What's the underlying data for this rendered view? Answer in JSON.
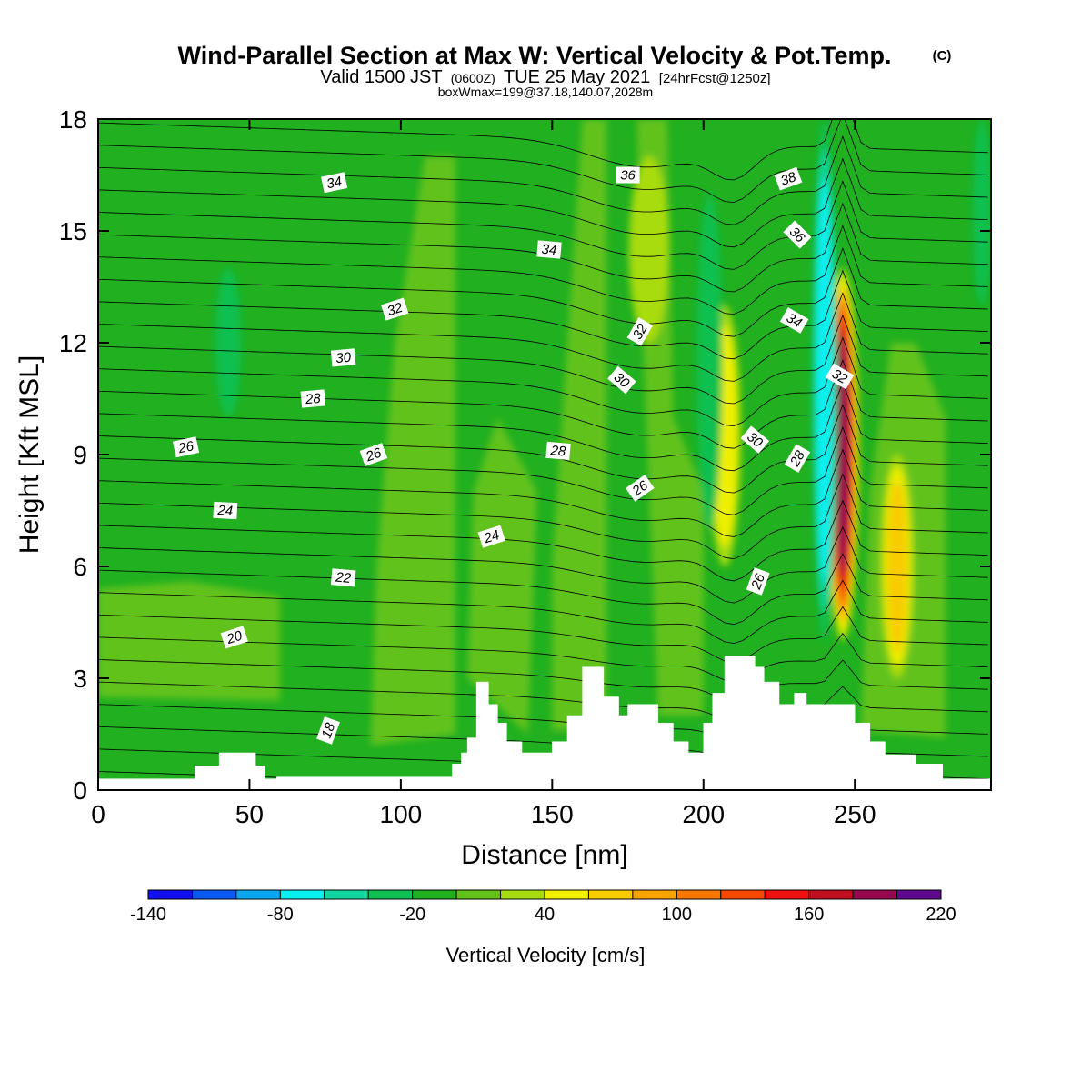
{
  "title": {
    "main": "Wind-Parallel Section at Max W: Vertical Velocity & Pot.Temp.",
    "copyright": "(C)",
    "valid_a": "Valid 1500 JST",
    "valid_utc": "(0600Z)",
    "valid_b": "TUE 25 May 2021",
    "forecast": "[24hrFcst@1250z]",
    "boxinfo": "boxWmax=199@37.18,140.07,2028m"
  },
  "chart_data": {
    "type": "heatmap",
    "xlabel": "Distance [nm]",
    "ylabel": "Height [Kft MSL]",
    "xlim": [
      0,
      295
    ],
    "ylim": [
      0,
      18
    ],
    "x_ticks": [
      0,
      50,
      100,
      150,
      200,
      250
    ],
    "y_ticks": [
      0,
      3,
      6,
      9,
      12,
      15,
      18
    ],
    "x_tick_labels": [
      "0",
      "50",
      "100",
      "150",
      "200",
      "250"
    ],
    "y_tick_labels": [
      "0",
      "3",
      "6",
      "9",
      "12",
      "15",
      "18"
    ],
    "colorbar": {
      "label": "Vertical Velocity [cm/s]",
      "levels": [
        -140,
        -120,
        -100,
        -80,
        -60,
        -40,
        -20,
        0,
        20,
        40,
        60,
        80,
        100,
        120,
        140,
        160,
        180,
        200,
        220
      ],
      "tick_values": [
        -140,
        -80,
        -20,
        40,
        100,
        160,
        220
      ],
      "tick_labels": [
        "-140",
        "-80",
        "-20",
        "40",
        "100",
        "160",
        "220"
      ],
      "colors": [
        "#1010f0",
        "#0a5af2",
        "#0aa6f0",
        "#08f0f0",
        "#10d8a0",
        "#10c050",
        "#20b020",
        "#62c21a",
        "#a8dc10",
        "#f0f000",
        "#f8cc00",
        "#f8a400",
        "#f87800",
        "#f84800",
        "#f01010",
        "#c01020",
        "#980a50",
        "#600890"
      ]
    },
    "background_velocity_band": "-20 to 0",
    "features": [
      {
        "kind": "updraft",
        "x_center": 246,
        "height_range": [
          4,
          14
        ],
        "max_velocity": 199,
        "label": "boxWmax=199"
      },
      {
        "kind": "updraft",
        "x_center": 207,
        "height_range": [
          6,
          13
        ],
        "max_velocity": 60
      },
      {
        "kind": "updraft",
        "x_center": 264,
        "height_range": [
          3,
          9
        ],
        "max_velocity": 80
      },
      {
        "kind": "downdraft",
        "x_center": 240,
        "height_range": [
          4,
          18
        ],
        "min_velocity": -80
      },
      {
        "kind": "downdraft",
        "x_center": 202,
        "height_range": [
          7,
          16
        ],
        "min_velocity": -40
      },
      {
        "kind": "weak_updraft",
        "x_center": 182,
        "height_range": [
          12,
          17
        ],
        "max_velocity": 40
      }
    ],
    "terrain": {
      "x": [
        0,
        32,
        32,
        40,
        40,
        52,
        52,
        55,
        55,
        59,
        59,
        117,
        117,
        120,
        120,
        122,
        122,
        125,
        125,
        129,
        129,
        132,
        132,
        135,
        135,
        140,
        140,
        150,
        150,
        155,
        155,
        160,
        160,
        167,
        167,
        172,
        172,
        175,
        175,
        185,
        185,
        190,
        190,
        195,
        195,
        200,
        200,
        203,
        203,
        207,
        207,
        217,
        217,
        220,
        220,
        225,
        225,
        230,
        230,
        234,
        234,
        250,
        250,
        255,
        255,
        260,
        260,
        270,
        270,
        279,
        279,
        295,
        295,
        0
      ],
      "y": [
        0.3,
        0.3,
        0.65,
        0.65,
        1.0,
        1.0,
        0.65,
        0.65,
        0.3,
        0.3,
        0.35,
        0.35,
        0.7,
        0.7,
        1.0,
        1.0,
        1.4,
        1.4,
        2.9,
        2.9,
        2.3,
        2.3,
        1.8,
        1.8,
        1.3,
        1.3,
        1.0,
        1.0,
        1.3,
        1.3,
        2.0,
        2.0,
        3.3,
        3.3,
        2.5,
        2.5,
        2.0,
        2.0,
        2.3,
        2.3,
        1.8,
        1.8,
        1.3,
        1.3,
        1.0,
        1.0,
        1.8,
        1.8,
        2.6,
        2.6,
        3.6,
        3.6,
        3.3,
        3.3,
        2.9,
        2.9,
        2.3,
        2.3,
        2.6,
        2.6,
        2.3,
        2.3,
        1.8,
        1.8,
        1.3,
        1.3,
        0.95,
        0.95,
        0.7,
        0.7,
        0.3,
        0.3,
        0,
        0
      ]
    },
    "contour_labels": [
      {
        "text": "18",
        "x": 76,
        "y": 1.6,
        "angle": 70
      },
      {
        "text": "20",
        "x": 45,
        "y": 4.1,
        "angle": 18
      },
      {
        "text": "22",
        "x": 81,
        "y": 5.7,
        "angle": -5
      },
      {
        "text": "24",
        "x": 42,
        "y": 7.5,
        "angle": -3
      },
      {
        "text": "24",
        "x": 130,
        "y": 6.8,
        "angle": 18
      },
      {
        "text": "26",
        "x": 29,
        "y": 9.2,
        "angle": 12
      },
      {
        "text": "26",
        "x": 91,
        "y": 9.0,
        "angle": 20
      },
      {
        "text": "26",
        "x": 179,
        "y": 8.1,
        "angle": 35
      },
      {
        "text": "26",
        "x": 218,
        "y": 5.6,
        "angle": 70
      },
      {
        "text": "28",
        "x": 71,
        "y": 10.5,
        "angle": 5
      },
      {
        "text": "28",
        "x": 152,
        "y": 9.1,
        "angle": -5
      },
      {
        "text": "28",
        "x": 231,
        "y": 8.9,
        "angle": 60
      },
      {
        "text": "30",
        "x": 81,
        "y": 11.6,
        "angle": 5
      },
      {
        "text": "30",
        "x": 173,
        "y": 11.0,
        "angle": -40
      },
      {
        "text": "30",
        "x": 217,
        "y": 9.4,
        "angle": -40
      },
      {
        "text": "32",
        "x": 98,
        "y": 12.9,
        "angle": 18
      },
      {
        "text": "32",
        "x": 179,
        "y": 12.3,
        "angle": 60
      },
      {
        "text": "32",
        "x": 245,
        "y": 11.1,
        "angle": -30
      },
      {
        "text": "34",
        "x": 78,
        "y": 16.3,
        "angle": 12
      },
      {
        "text": "34",
        "x": 149,
        "y": 14.5,
        "angle": -5
      },
      {
        "text": "34",
        "x": 230,
        "y": 12.6,
        "angle": -30
      },
      {
        "text": "36",
        "x": 175,
        "y": 16.5,
        "angle": 0
      },
      {
        "text": "36",
        "x": 231,
        "y": 14.9,
        "angle": -45
      },
      {
        "text": "38",
        "x": 228,
        "y": 16.4,
        "angle": 20
      }
    ]
  }
}
